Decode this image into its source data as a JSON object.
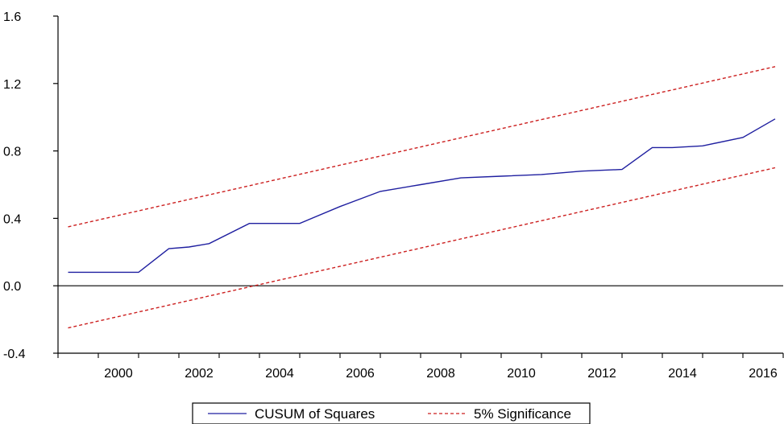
{
  "chart_data": {
    "type": "line",
    "title": "",
    "xlabel": "",
    "ylabel": "",
    "xlim": [
      1999.0,
      2017.0
    ],
    "ylim": [
      -0.4,
      1.6
    ],
    "y_ticks": [
      {
        "value": -0.4,
        "label": "-0.4"
      },
      {
        "value": 0.0,
        "label": "0.0"
      },
      {
        "value": 0.4,
        "label": "0.4"
      },
      {
        "value": 0.8,
        "label": "0.8"
      },
      {
        "value": 1.2,
        "label": "1.2"
      },
      {
        "value": 1.6,
        "label": "1.6"
      }
    ],
    "x_tick_labels": [
      "2000",
      "2002",
      "2004",
      "2006",
      "2008",
      "2010",
      "2012",
      "2014",
      "2016"
    ],
    "grid": false,
    "zero_line": true,
    "legend": {
      "position": "bottom-center"
    },
    "series": [
      {
        "name": "CUSUM of Squares",
        "color": "#1f1fa0",
        "style": "solid",
        "points": [
          [
            1999.25,
            0.08
          ],
          [
            2000.0,
            0.08
          ],
          [
            2001.0,
            0.08
          ],
          [
            2001.75,
            0.22
          ],
          [
            2002.25,
            0.23
          ],
          [
            2002.75,
            0.25
          ],
          [
            2003.75,
            0.37
          ],
          [
            2005.0,
            0.37
          ],
          [
            2006.0,
            0.47
          ],
          [
            2007.0,
            0.56
          ],
          [
            2008.0,
            0.6
          ],
          [
            2009.0,
            0.64
          ],
          [
            2010.0,
            0.65
          ],
          [
            2011.0,
            0.66
          ],
          [
            2012.0,
            0.68
          ],
          [
            2013.0,
            0.69
          ],
          [
            2013.75,
            0.82
          ],
          [
            2014.25,
            0.82
          ],
          [
            2015.0,
            0.83
          ],
          [
            2016.0,
            0.88
          ],
          [
            2016.8,
            0.99
          ]
        ]
      },
      {
        "name": "5% Significance",
        "color": "#cc1f1f",
        "style": "dashed",
        "points": [
          [
            1999.25,
            0.35
          ],
          [
            2016.8,
            1.3
          ]
        ]
      },
      {
        "name": "",
        "color": "#cc1f1f",
        "style": "dashed",
        "points": [
          [
            1999.25,
            -0.25
          ],
          [
            2016.8,
            0.7
          ]
        ]
      }
    ]
  }
}
